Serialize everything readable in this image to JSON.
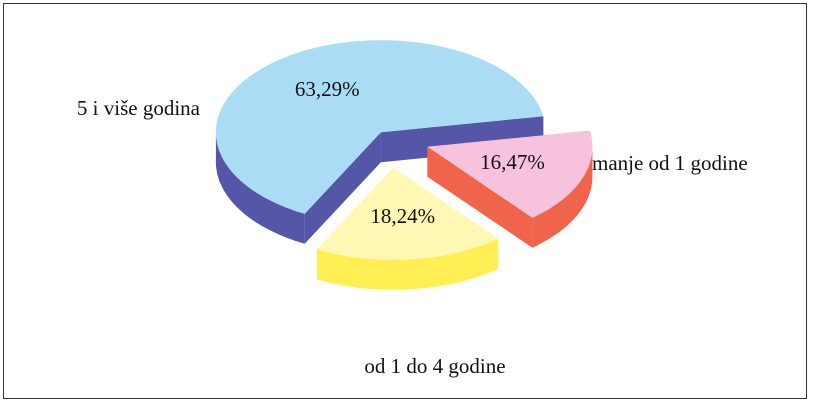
{
  "chart_data": {
    "type": "pie3d",
    "categories": [
      "5 i više godina",
      "od 1 do 4 godine",
      "manje od 1 godine"
    ],
    "values": [
      63.29,
      18.24,
      16.47
    ],
    "value_labels": [
      "63,29%",
      "18,24%",
      "16,47%"
    ],
    "colors": [
      "#aadcf6",
      "#fff8b4",
      "#f6c2dc"
    ],
    "side_colors": [
      "#5656a8",
      "#ffef55",
      "#f0644c"
    ]
  }
}
